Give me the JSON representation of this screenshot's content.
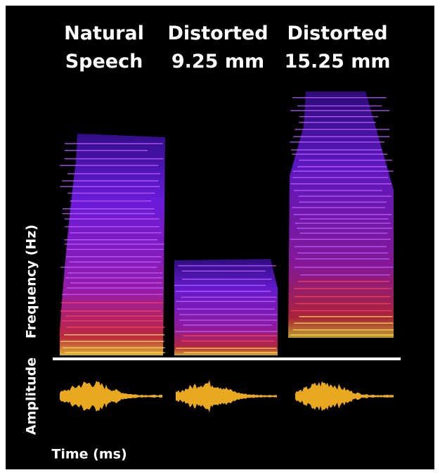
{
  "panels": [
    {
      "title": [
        "Natural",
        "Speech"
      ]
    },
    {
      "title": [
        "Distorted",
        "9.25 mm"
      ]
    },
    {
      "title": [
        "Distorted",
        "15.25 mm"
      ]
    }
  ],
  "y_labels": {
    "frequency": "Frequency (Hz)",
    "amplitude": "Amplitude"
  },
  "x_label": "Time (ms)"
}
